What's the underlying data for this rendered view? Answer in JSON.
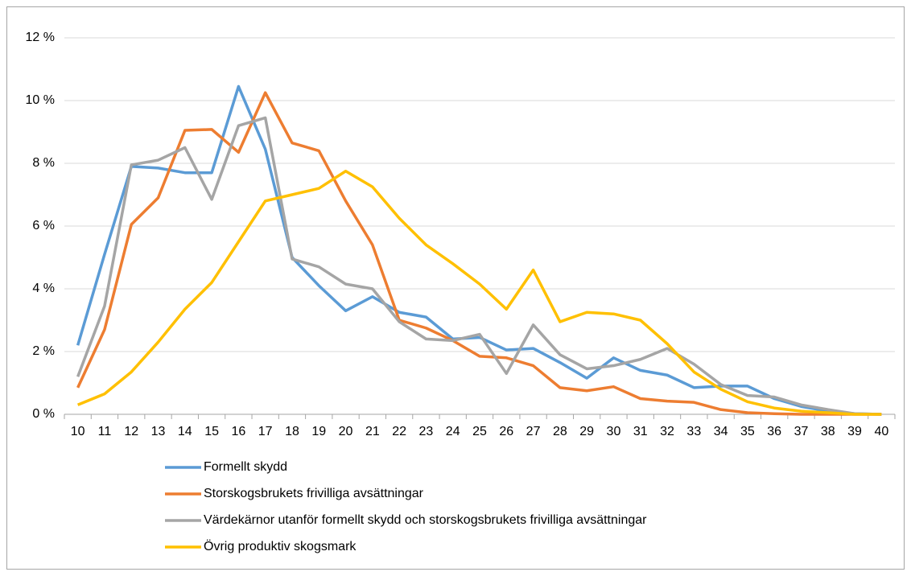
{
  "chart_data": {
    "type": "line",
    "categories": [
      10,
      11,
      12,
      13,
      14,
      15,
      16,
      17,
      18,
      19,
      20,
      21,
      22,
      23,
      24,
      25,
      26,
      27,
      28,
      29,
      30,
      31,
      32,
      33,
      34,
      35,
      36,
      37,
      38,
      39,
      40
    ],
    "series": [
      {
        "name": "Formellt skydd",
        "color": "#5b9bd5",
        "values": [
          2.2,
          5.1,
          7.9,
          7.85,
          7.7,
          7.7,
          10.45,
          8.45,
          5.0,
          4.1,
          3.3,
          3.75,
          3.25,
          3.1,
          2.4,
          2.45,
          2.05,
          2.1,
          1.65,
          1.15,
          1.8,
          1.4,
          1.25,
          0.85,
          0.9,
          0.9,
          0.5,
          0.25,
          0.1,
          0.02,
          0
        ]
      },
      {
        "name": "Storskogsbrukets frivilliga avsättningar",
        "color": "#ed7d31",
        "values": [
          0.85,
          2.7,
          6.05,
          6.9,
          9.05,
          9.08,
          8.35,
          10.25,
          8.65,
          8.4,
          6.8,
          5.4,
          3.0,
          2.75,
          2.35,
          1.85,
          1.8,
          1.55,
          0.85,
          0.75,
          0.88,
          0.5,
          0.42,
          0.38,
          0.15,
          0.05,
          0.02,
          0,
          0,
          0,
          0
        ]
      },
      {
        "name": "Värdekärnor utanför formellt skydd och storskogsbrukets frivilliga avsättningar",
        "color": "#a5a5a5",
        "values": [
          1.2,
          3.45,
          7.95,
          8.1,
          8.5,
          6.85,
          9.2,
          9.45,
          4.95,
          4.7,
          4.15,
          4.0,
          2.95,
          2.4,
          2.35,
          2.55,
          1.3,
          2.85,
          1.9,
          1.45,
          1.55,
          1.75,
          2.1,
          1.6,
          0.95,
          0.6,
          0.55,
          0.3,
          0.15,
          0.02,
          0
        ]
      },
      {
        "name": "Övrig produktiv skogsmark",
        "color": "#ffc000",
        "values": [
          0.3,
          0.65,
          1.35,
          2.3,
          3.35,
          4.2,
          5.5,
          6.8,
          7.0,
          7.2,
          7.75,
          7.25,
          6.25,
          5.4,
          4.8,
          4.15,
          3.35,
          4.6,
          2.95,
          3.25,
          3.2,
          3.0,
          2.25,
          1.35,
          0.8,
          0.4,
          0.2,
          0.1,
          0.05,
          0,
          0
        ]
      }
    ],
    "ylim": [
      0,
      12
    ],
    "yticks": [
      {
        "value": 0,
        "label": "0 %"
      },
      {
        "value": 2,
        "label": "2 %"
      },
      {
        "value": 4,
        "label": "4 %"
      },
      {
        "value": 6,
        "label": "6 %"
      },
      {
        "value": 8,
        "label": "8 %"
      },
      {
        "value": 10,
        "label": "10 %"
      },
      {
        "value": 12,
        "label": "12 %"
      }
    ],
    "grid": true,
    "legend": "bottom"
  }
}
